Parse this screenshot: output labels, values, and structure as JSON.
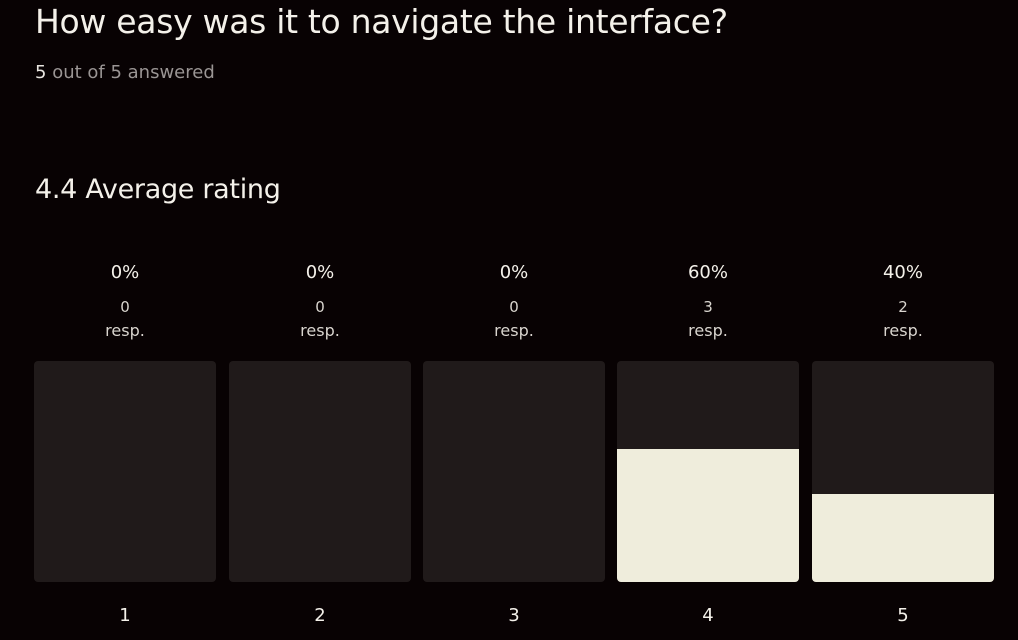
{
  "question": "How easy was it to navigate the interface?",
  "answered": {
    "count": "5",
    "text": "out of 5 answered"
  },
  "average": "4.4 Average rating",
  "colors": {
    "bar_bg": "#201a1a",
    "bar_fill": "#efeddc",
    "page_bg": "#080203"
  },
  "ratings": [
    {
      "label": "1",
      "percent": "0%",
      "count": "0",
      "unit": "resp.",
      "fraction": 0
    },
    {
      "label": "2",
      "percent": "0%",
      "count": "0",
      "unit": "resp.",
      "fraction": 0
    },
    {
      "label": "3",
      "percent": "0%",
      "count": "0",
      "unit": "resp.",
      "fraction": 0
    },
    {
      "label": "4",
      "percent": "60%",
      "count": "3",
      "unit": "resp.",
      "fraction": 0.6
    },
    {
      "label": "5",
      "percent": "40%",
      "count": "2",
      "unit": "resp.",
      "fraction": 0.4
    }
  ]
}
